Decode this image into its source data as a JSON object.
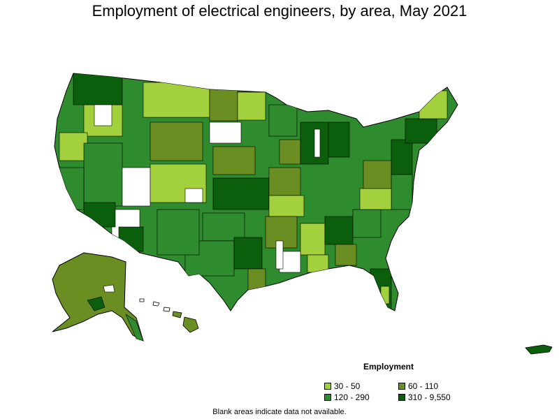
{
  "title": "Employment of electrical engineers, by area, May 2021",
  "legend": {
    "title": "Employment",
    "items": [
      {
        "label": "30 - 50",
        "color": "#a3d13d"
      },
      {
        "label": "60 - 110",
        "color": "#6b8e23"
      },
      {
        "label": "120 - 290",
        "color": "#2e8b2e"
      },
      {
        "label": "310 - 9,550",
        "color": "#0b5e0b"
      }
    ]
  },
  "footnote": "Blank areas indicate data not available."
}
